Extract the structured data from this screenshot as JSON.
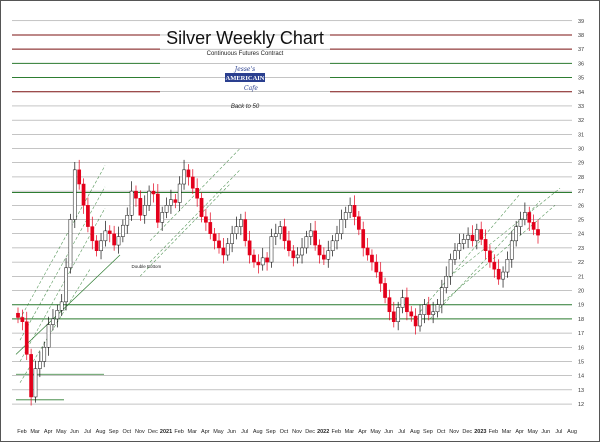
{
  "chart_data": {
    "type": "candlestick",
    "title": "Silver Weekly Chart",
    "subtitle": "Continuous Futures Contract",
    "y_ticks": [
      12,
      13,
      14,
      15,
      16,
      17,
      18,
      19,
      20,
      21,
      22,
      23,
      24,
      25,
      26,
      27,
      28,
      29,
      30,
      31,
      32,
      33,
      34,
      35,
      36,
      37,
      38,
      39
    ],
    "ylim": [
      11.3,
      39.9
    ],
    "x_labels": [
      "Feb",
      "Mar",
      "Apr",
      "May",
      "Jun",
      "Jul",
      "Aug",
      "Sep",
      "Oct",
      "Nov",
      "Dec",
      "2021",
      "Feb",
      "Mar",
      "Apr",
      "May",
      "Jun",
      "Jul",
      "Aug",
      "Sep",
      "Oct",
      "Nov",
      "Dec",
      "2022",
      "Feb",
      "Mar",
      "Apr",
      "May",
      "Jun",
      "Jul",
      "Aug",
      "Sep",
      "Oct",
      "Nov",
      "Dec",
      "2023",
      "Feb",
      "Mar",
      "Apr",
      "May",
      "Jun",
      "Jul",
      "Aug"
    ],
    "annotations": [
      {
        "text": "Double Bottom",
        "x_index": 9.5,
        "y": 21.6
      }
    ],
    "horizontal_levels": [
      {
        "y": 18.0,
        "color": "#2e7d32"
      },
      {
        "y": 19.0,
        "color": "#2e7d32"
      },
      {
        "y": 26.9,
        "color": "#2e7d32"
      },
      {
        "y": 34.0,
        "color": "#7b1111"
      },
      {
        "y": 35.0,
        "color": "#2e7d32"
      },
      {
        "y": 36.0,
        "color": "#2e7d32"
      },
      {
        "y": 37.0,
        "color": "#7b1111"
      },
      {
        "y": 38.0,
        "color": "#7b1111"
      }
    ],
    "closes": [
      18.1,
      17.8,
      15.5,
      12.5,
      14.5,
      15.0,
      16.0,
      17.6,
      18.0,
      18.6,
      19.2,
      21.6,
      25.0,
      28.5,
      27.5,
      26.0,
      24.5,
      23.5,
      22.8,
      23.5,
      24.2,
      24.0,
      23.2,
      23.8,
      24.6,
      25.3,
      27.0,
      26.5,
      25.3,
      26.0,
      27.0,
      26.8,
      24.8,
      25.5,
      26.0,
      26.4,
      26.2,
      27.5,
      28.5,
      28.0,
      27.2,
      26.5,
      25.2,
      24.8,
      24.0,
      23.5,
      23.0,
      22.5,
      23.3,
      24.0,
      24.5,
      25.0,
      23.5,
      22.5,
      22.0,
      21.8,
      22.3,
      22.0,
      23.8,
      24.0,
      24.5,
      23.5,
      22.8,
      22.3,
      22.5,
      23.0,
      23.8,
      24.2,
      23.2,
      22.5,
      22.2,
      22.8,
      23.5,
      24.0,
      25.0,
      25.5,
      26.0,
      25.2,
      24.3,
      23.0,
      22.5,
      22.0,
      21.3,
      20.5,
      19.5,
      18.5,
      17.8,
      18.8,
      19.5,
      18.5,
      18.2,
      17.5,
      18.3,
      19.0,
      18.3,
      18.5,
      19.0,
      20.2,
      21.0,
      22.2,
      22.8,
      23.3,
      23.6,
      23.9,
      23.5,
      24.3,
      23.6,
      22.8,
      22.0,
      21.5,
      20.8,
      21.3,
      22.2,
      23.5,
      24.5,
      25.0,
      25.5,
      24.8,
      24.3,
      23.9
    ],
    "series_colors": {
      "down": "#e3001b",
      "up": "#111111",
      "level_green": "#2e7d32",
      "level_red": "#7b1111",
      "grid": "#8a8a8a",
      "channel": "#2e7d32"
    }
  },
  "logo": {
    "line1": "Jesse's",
    "line2": "AMERICAIN",
    "line3": "Cafe"
  },
  "back_link": "Back to 50"
}
